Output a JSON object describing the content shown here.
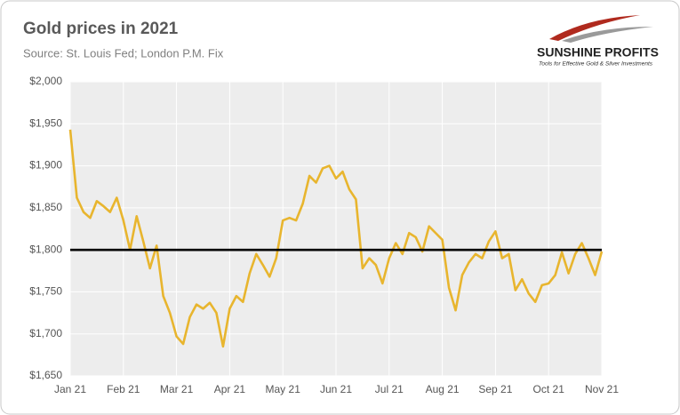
{
  "chart_data": {
    "type": "line",
    "title": "Gold prices in 2021",
    "subtitle": "Source: St. Louis Fed; London P.M. Fix",
    "categories": [
      "Jan 21",
      null,
      null,
      null,
      null,
      null,
      null,
      null,
      "Feb 21",
      null,
      null,
      null,
      null,
      null,
      null,
      null,
      "Mar 21",
      null,
      null,
      null,
      null,
      null,
      null,
      null,
      "Apr 21",
      null,
      null,
      null,
      null,
      null,
      null,
      null,
      "May 21",
      null,
      null,
      null,
      null,
      null,
      null,
      null,
      "Jun 21",
      null,
      null,
      null,
      null,
      null,
      null,
      null,
      "Jul 21",
      null,
      null,
      null,
      null,
      null,
      null,
      null,
      "Aug 21",
      null,
      null,
      null,
      null,
      null,
      null,
      null,
      "Sep 21",
      null,
      null,
      null,
      null,
      null,
      null,
      null,
      "Oct 21",
      null,
      null,
      null,
      null,
      null,
      null,
      null,
      "Nov 21"
    ],
    "series": [
      {
        "name": "Gold price",
        "color": "#e8b52e",
        "values": [
          1943,
          1862,
          1845,
          1838,
          1858,
          1852,
          1845,
          1862,
          1835,
          1800,
          1840,
          1810,
          1778,
          1805,
          1745,
          1725,
          1697,
          1688,
          1720,
          1735,
          1730,
          1737,
          1725,
          1685,
          1730,
          1745,
          1738,
          1772,
          1795,
          1782,
          1768,
          1790,
          1835,
          1838,
          1835,
          1855,
          1888,
          1880,
          1897,
          1900,
          1885,
          1893,
          1872,
          1860,
          1778,
          1790,
          1782,
          1760,
          1790,
          1808,
          1795,
          1820,
          1815,
          1798,
          1828,
          1820,
          1812,
          1755,
          1728,
          1770,
          1785,
          1795,
          1790,
          1810,
          1822,
          1790,
          1795,
          1752,
          1765,
          1748,
          1738,
          1758,
          1760,
          1770,
          1797,
          1772,
          1795,
          1808,
          1790,
          1770,
          1798
        ]
      }
    ],
    "reference_line": {
      "value": 1800,
      "color": "#000000"
    },
    "ylim": [
      1650,
      2000
    ],
    "yticks": [
      {
        "value": 1650,
        "label": "$1,650"
      },
      {
        "value": 1700,
        "label": "$1,700"
      },
      {
        "value": 1750,
        "label": "$1,750"
      },
      {
        "value": 1800,
        "label": "$1,800"
      },
      {
        "value": 1850,
        "label": "$1,850"
      },
      {
        "value": 1900,
        "label": "$1,900"
      },
      {
        "value": 1950,
        "label": "$1,950"
      },
      {
        "value": 2000,
        "label": "$2,000"
      }
    ],
    "grid": true
  },
  "logo": {
    "name": "SUNSHINE PROFITS",
    "tagline": "Tools for Effective Gold & Silver Investments"
  }
}
